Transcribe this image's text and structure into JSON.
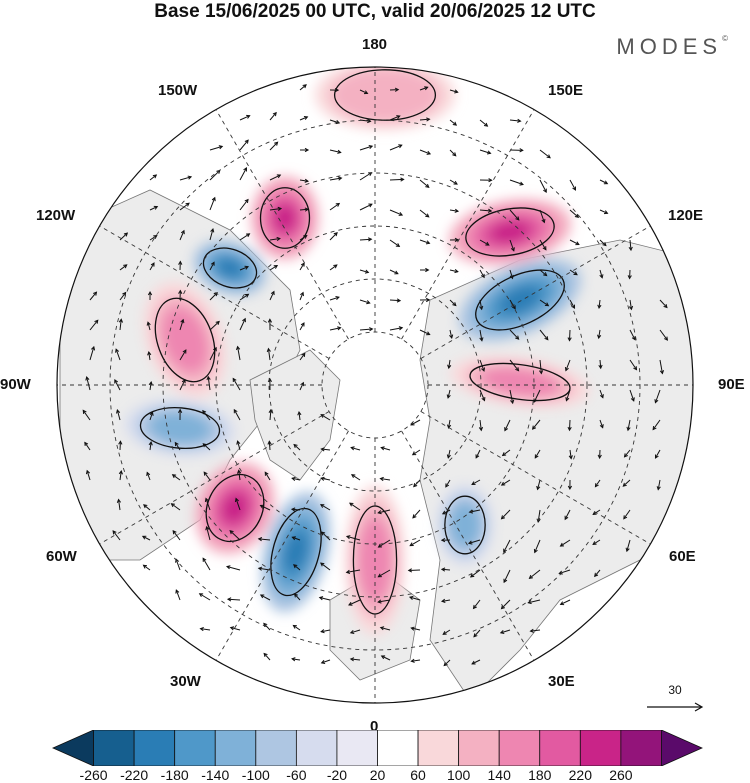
{
  "title": "Base 15/06/2025 00 UTC, valid 20/06/2025 12 UTC",
  "brand": "MODES",
  "brand_mark": "©",
  "longitude_labels": {
    "top": "180",
    "bottom": "0",
    "left": "90W",
    "right": "90E",
    "w150": "150W",
    "e150": "150E",
    "w120": "120W",
    "e120": "120E",
    "w60": "60W",
    "e60": "60E",
    "w30": "30W",
    "e30": "30E"
  },
  "reference_vector": {
    "value": "30"
  },
  "colorbar": {
    "ticks": [
      "-260",
      "-220",
      "-180",
      "-140",
      "-100",
      "-60",
      "-20",
      "20",
      "60",
      "100",
      "140",
      "180",
      "220",
      "260"
    ],
    "colors": [
      "#0b3a5e",
      "#165f8f",
      "#2a7db5",
      "#4f98c9",
      "#7fb1d8",
      "#aec6e2",
      "#d6dcee",
      "#e9e8f3",
      "#ffffff",
      "#f9d8da",
      "#f4b1c2",
      "#ee86b1",
      "#e25aa1",
      "#c92488",
      "#93147a",
      "#5a0a6a"
    ]
  },
  "anomaly_centers": [
    {
      "sign": "positive",
      "level": "strong"
    },
    {
      "sign": "positive",
      "level": "strong"
    },
    {
      "sign": "negative",
      "level": "strong"
    },
    {
      "sign": "negative",
      "level": "strong"
    },
    {
      "sign": "positive",
      "level": "strong"
    },
    {
      "sign": "negative",
      "level": "strong"
    },
    {
      "sign": "positive",
      "level": "moderate"
    },
    {
      "sign": "negative",
      "level": "moderate"
    },
    {
      "sign": "positive",
      "level": "moderate"
    },
    {
      "sign": "positive",
      "level": "moderate"
    },
    {
      "sign": "negative",
      "level": "moderate"
    },
    {
      "sign": "positive",
      "level": "weak"
    }
  ]
}
